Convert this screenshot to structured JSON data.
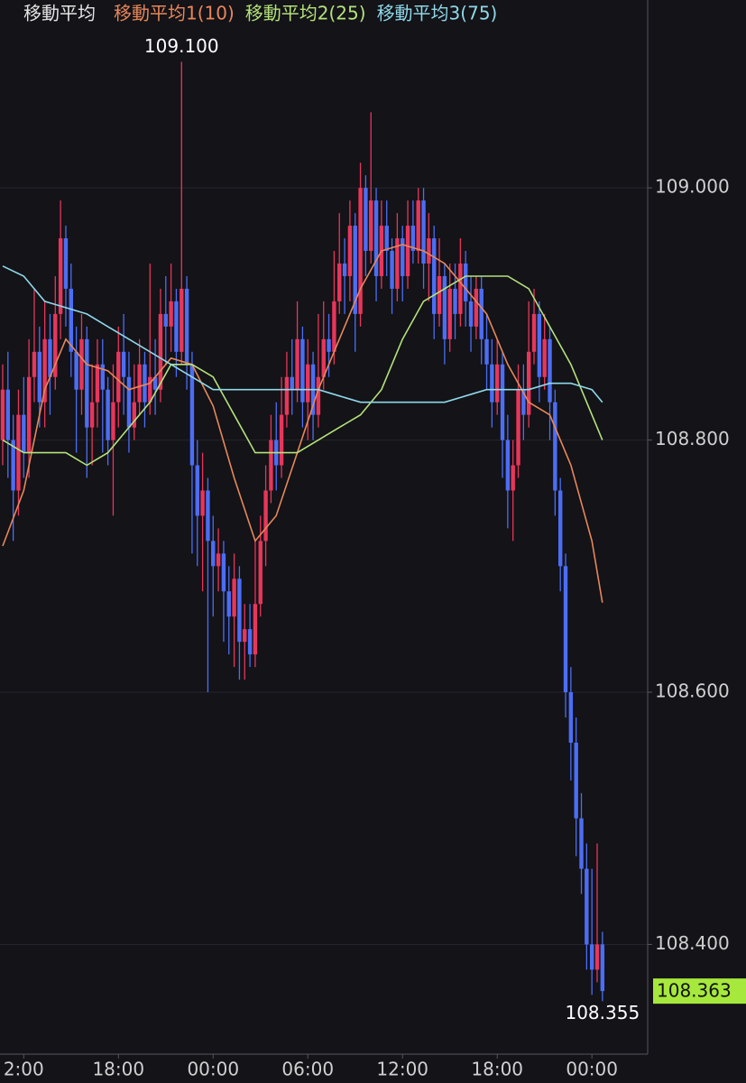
{
  "chart_data": {
    "type": "candlestick",
    "legend_title": "移動平均",
    "up_color": "#e8365a",
    "down_color": "#4c6ef5",
    "grid": true,
    "ylim": [
      108.313,
      109.149
    ],
    "yticks": [
      {
        "value": 108.4,
        "label": "108.400"
      },
      {
        "value": 108.6,
        "label": "108.600"
      },
      {
        "value": 108.8,
        "label": "108.800"
      },
      {
        "value": 109.0,
        "label": "109.000"
      }
    ],
    "xlim": [
      -0.51,
      122.6
    ],
    "xticks": [
      {
        "value": 4,
        "label": "2:00"
      },
      {
        "value": 22,
        "label": "18:00"
      },
      {
        "value": 40,
        "label": "00:00"
      },
      {
        "value": 58,
        "label": "06:00"
      },
      {
        "value": 76,
        "label": "12:00"
      },
      {
        "value": 94,
        "label": "18:00"
      },
      {
        "value": 112,
        "label": "00:00"
      }
    ],
    "high_label": {
      "value": 109.1,
      "label": "109.100",
      "index": 34
    },
    "low_label": {
      "value": 108.355,
      "label": "108.355",
      "index": 114
    },
    "last_label": {
      "value": 108.363,
      "label": "108.363",
      "color": "#a6e83c"
    },
    "open": [
      108.8,
      108.84,
      108.8,
      108.76,
      108.82,
      108.79,
      108.85,
      108.87,
      108.83,
      108.88,
      108.85,
      108.9,
      108.96,
      108.92,
      108.87,
      108.84,
      108.88,
      108.81,
      108.83,
      108.86,
      108.84,
      108.8,
      108.83,
      108.87,
      108.85,
      108.81,
      108.83,
      108.86,
      108.83,
      108.85,
      108.84,
      108.9,
      108.89,
      108.91,
      108.87,
      108.92,
      108.86,
      108.78,
      108.74,
      108.76,
      108.72,
      108.7,
      108.71,
      108.68,
      108.66,
      108.69,
      108.64,
      108.65,
      108.63,
      108.67,
      108.72,
      108.76,
      108.8,
      108.78,
      108.82,
      108.85,
      108.84,
      108.88,
      108.83,
      108.86,
      108.82,
      108.85,
      108.88,
      108.87,
      108.91,
      108.94,
      108.93,
      108.97,
      108.9,
      109.0,
      108.95,
      108.99,
      108.93,
      108.97,
      108.95,
      108.92,
      108.96,
      108.93,
      108.97,
      108.95,
      108.99,
      108.94,
      108.96,
      108.9,
      108.93,
      108.88,
      108.92,
      108.9,
      108.94,
      108.91,
      108.89,
      108.92,
      108.88,
      108.86,
      108.83,
      108.86,
      108.8,
      108.76,
      108.78,
      108.84,
      108.82,
      108.87,
      108.9,
      108.85,
      108.88,
      108.83,
      108.76,
      108.7,
      108.6,
      108.56,
      108.5,
      108.46,
      108.4,
      108.38,
      108.4
    ],
    "high": [
      108.86,
      108.87,
      108.82,
      108.84,
      108.85,
      108.88,
      108.92,
      108.89,
      108.91,
      108.9,
      108.93,
      108.99,
      108.97,
      108.94,
      108.89,
      108.9,
      108.89,
      108.86,
      108.88,
      108.88,
      108.85,
      108.86,
      108.89,
      108.9,
      108.87,
      108.86,
      108.88,
      108.87,
      108.94,
      108.88,
      108.92,
      108.93,
      108.94,
      108.92,
      109.1,
      108.93,
      108.87,
      108.8,
      108.79,
      108.77,
      108.74,
      108.73,
      108.72,
      108.7,
      108.71,
      108.7,
      108.67,
      108.67,
      108.72,
      108.74,
      108.78,
      108.82,
      108.83,
      108.85,
      108.87,
      108.88,
      108.91,
      108.89,
      108.88,
      108.87,
      108.9,
      108.91,
      108.9,
      108.95,
      108.98,
      108.96,
      108.99,
      108.98,
      109.02,
      109.01,
      109.06,
      109.0,
      108.99,
      108.99,
      108.96,
      108.98,
      108.97,
      108.99,
      108.99,
      109.0,
      109.0,
      108.98,
      108.97,
      108.96,
      108.94,
      108.94,
      108.94,
      108.96,
      108.95,
      108.93,
      108.93,
      108.93,
      108.9,
      108.88,
      108.88,
      108.87,
      108.82,
      108.8,
      108.86,
      108.86,
      108.91,
      108.92,
      108.91,
      108.9,
      108.89,
      108.84,
      108.77,
      108.71,
      108.62,
      108.58,
      108.52,
      108.48,
      108.46,
      108.48,
      108.41
    ],
    "low": [
      108.78,
      108.77,
      108.72,
      108.74,
      108.77,
      108.77,
      108.83,
      108.81,
      108.81,
      108.82,
      108.84,
      108.88,
      108.89,
      108.85,
      108.79,
      108.82,
      108.77,
      108.78,
      108.81,
      108.79,
      108.78,
      108.74,
      108.81,
      108.82,
      108.79,
      108.8,
      108.82,
      108.81,
      108.82,
      108.82,
      108.83,
      108.86,
      108.87,
      108.85,
      108.86,
      108.84,
      108.71,
      108.7,
      108.68,
      108.6,
      108.66,
      108.68,
      108.64,
      108.63,
      108.62,
      108.61,
      108.61,
      108.62,
      108.62,
      108.66,
      108.7,
      108.75,
      108.76,
      108.77,
      108.81,
      108.82,
      108.83,
      108.81,
      108.8,
      108.8,
      108.81,
      108.84,
      108.85,
      108.86,
      108.9,
      108.9,
      108.91,
      108.87,
      108.89,
      108.93,
      108.94,
      108.91,
      108.92,
      108.93,
      108.9,
      108.91,
      108.91,
      108.92,
      108.94,
      108.94,
      108.92,
      108.91,
      108.88,
      108.89,
      108.86,
      108.87,
      108.88,
      108.89,
      108.89,
      108.87,
      108.88,
      108.86,
      108.84,
      108.81,
      108.82,
      108.77,
      108.73,
      108.72,
      108.77,
      108.8,
      108.81,
      108.86,
      108.83,
      108.84,
      108.8,
      108.74,
      108.68,
      108.58,
      108.53,
      108.47,
      108.44,
      108.38,
      108.36,
      108.37,
      108.355
    ],
    "close": [
      108.84,
      108.8,
      108.76,
      108.82,
      108.79,
      108.85,
      108.87,
      108.83,
      108.88,
      108.85,
      108.9,
      108.96,
      108.92,
      108.87,
      108.84,
      108.88,
      108.81,
      108.83,
      108.86,
      108.84,
      108.8,
      108.83,
      108.87,
      108.85,
      108.81,
      108.83,
      108.86,
      108.83,
      108.85,
      108.84,
      108.9,
      108.89,
      108.91,
      108.87,
      108.92,
      108.86,
      108.78,
      108.74,
      108.76,
      108.72,
      108.7,
      108.71,
      108.68,
      108.66,
      108.69,
      108.64,
      108.65,
      108.63,
      108.67,
      108.72,
      108.76,
      108.8,
      108.78,
      108.82,
      108.85,
      108.84,
      108.88,
      108.83,
      108.86,
      108.82,
      108.85,
      108.88,
      108.87,
      108.91,
      108.94,
      108.93,
      108.97,
      108.9,
      109.0,
      108.95,
      108.99,
      108.93,
      108.97,
      108.95,
      108.92,
      108.96,
      108.93,
      108.97,
      108.95,
      108.99,
      108.94,
      108.96,
      108.9,
      108.93,
      108.88,
      108.92,
      108.9,
      108.94,
      108.91,
      108.89,
      108.92,
      108.88,
      108.86,
      108.83,
      108.86,
      108.8,
      108.76,
      108.78,
      108.84,
      108.82,
      108.87,
      108.9,
      108.85,
      108.88,
      108.83,
      108.76,
      108.7,
      108.6,
      108.56,
      108.5,
      108.46,
      108.4,
      108.38,
      108.4,
      108.363
    ],
    "ma_series": [
      {
        "name": "移動平均1(10)",
        "color": "#e8875a",
        "x": [
          0,
          4,
          8,
          12,
          16,
          20,
          24,
          28,
          32,
          36,
          40,
          44,
          48,
          52,
          56,
          60,
          64,
          68,
          72,
          76,
          80,
          84,
          88,
          92,
          96,
          100,
          104,
          108,
          112,
          114
        ],
        "values": [
          108.716,
          108.76,
          108.84,
          108.88,
          108.86,
          108.855,
          108.84,
          108.845,
          108.865,
          108.86,
          108.827,
          108.77,
          108.72,
          108.74,
          108.79,
          108.84,
          108.88,
          108.92,
          108.95,
          108.955,
          108.95,
          108.94,
          108.92,
          108.9,
          108.86,
          108.83,
          108.82,
          108.78,
          108.72,
          108.671
        ]
      },
      {
        "name": "移動平均2(25)",
        "color": "#b5e27a",
        "x": [
          0,
          4,
          8,
          12,
          16,
          20,
          24,
          28,
          32,
          36,
          40,
          44,
          48,
          52,
          56,
          60,
          64,
          68,
          72,
          76,
          80,
          84,
          88,
          92,
          96,
          100,
          104,
          108,
          112,
          114
        ],
        "values": [
          108.8,
          108.79,
          108.79,
          108.79,
          108.78,
          108.79,
          108.81,
          108.83,
          108.86,
          108.86,
          108.85,
          108.82,
          108.79,
          108.79,
          108.79,
          108.8,
          108.81,
          108.82,
          108.84,
          108.88,
          108.91,
          108.92,
          108.93,
          108.93,
          108.93,
          108.92,
          108.89,
          108.86,
          108.82,
          108.8
        ]
      },
      {
        "name": "移動平均3(75)",
        "color": "#8fd8e8",
        "x": [
          0,
          4,
          8,
          12,
          16,
          20,
          24,
          28,
          32,
          36,
          40,
          44,
          48,
          52,
          56,
          60,
          64,
          68,
          72,
          76,
          80,
          84,
          88,
          92,
          96,
          100,
          104,
          108,
          112,
          114
        ],
        "values": [
          108.938,
          108.93,
          108.91,
          108.905,
          108.9,
          108.89,
          108.88,
          108.87,
          108.86,
          108.85,
          108.84,
          108.84,
          108.84,
          108.84,
          108.84,
          108.84,
          108.835,
          108.83,
          108.83,
          108.83,
          108.83,
          108.83,
          108.835,
          108.84,
          108.84,
          108.84,
          108.845,
          108.845,
          108.84,
          108.83
        ]
      }
    ]
  }
}
